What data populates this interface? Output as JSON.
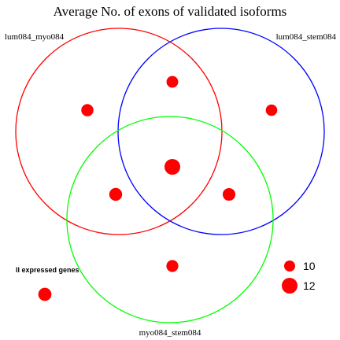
{
  "title": "Average No. of exons of validated isoforms",
  "sets": [
    {
      "label": "lum084_myo084",
      "color": "#ff0000"
    },
    {
      "label": "lum084_stem084",
      "color": "#0000ff"
    },
    {
      "label": "myo084_stem084",
      "color": "#00ff00"
    }
  ],
  "dot_color": "#ff0000",
  "regions": [
    {
      "id": "only-lum084_myo084",
      "value": 10.5
    },
    {
      "id": "lum084_myo084-and-lum084_stem084",
      "value": 10.3
    },
    {
      "id": "only-lum084_stem084",
      "value": 10.2
    },
    {
      "id": "all-three",
      "value": 12.0
    },
    {
      "id": "lum084_myo084-and-myo084_stem084",
      "value": 10.8
    },
    {
      "id": "lum084_stem084-and-myo084_stem084",
      "value": 10.7
    },
    {
      "id": "only-myo084_stem084",
      "value": 10.4
    }
  ],
  "outside_note": "ll expressed genes",
  "outside_value": 10.9,
  "legend": [
    {
      "label": "10",
      "value": 10
    },
    {
      "label": "12",
      "value": 12
    }
  ]
}
